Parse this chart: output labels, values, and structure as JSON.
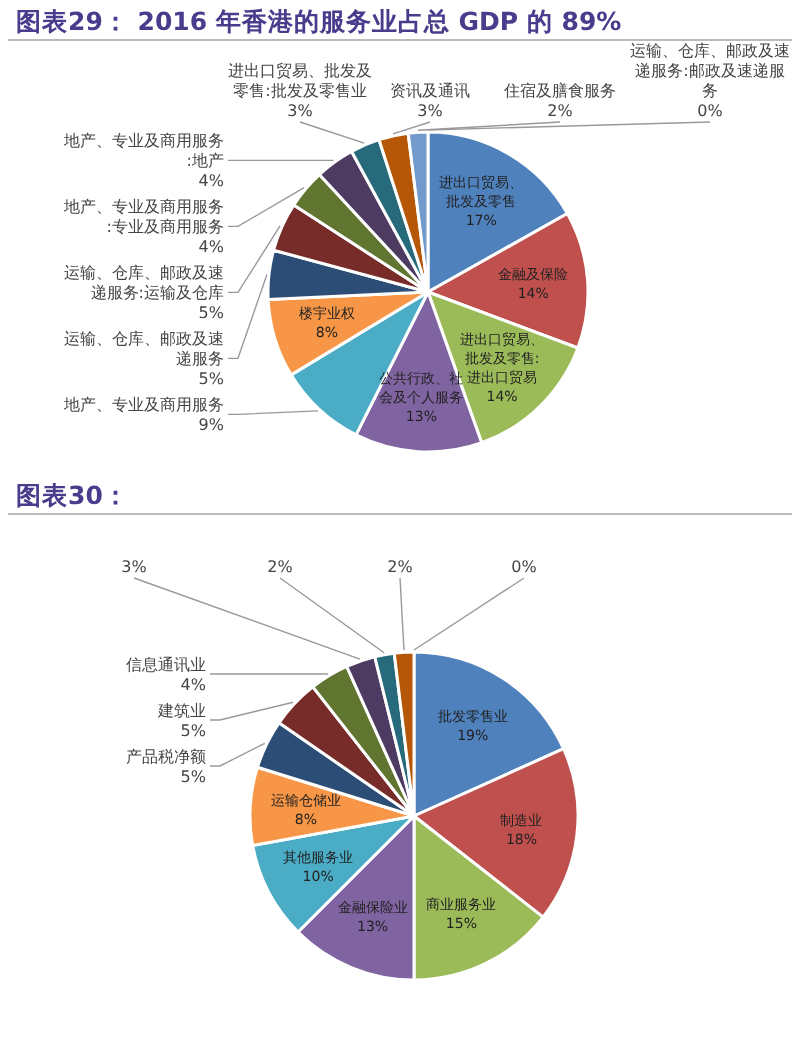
{
  "chart_data": [
    {
      "type": "pie",
      "title": "图表29： 2016 年香港的服务业占总 GDP 的 89%",
      "categories": [
        "进出口贸易、批发及零售",
        "金融及保险",
        "进出口贸易、批发及零售:进出口贸易",
        "公共行政、社会及个人服务",
        "地产、专业及商用服务",
        "楼宇业权",
        "运输、仓库、邮政及速递服务",
        "运输、仓库、邮政及速递服务:运输及仓库",
        "地产、专业及商用服务:专业及商用服务",
        "地产、专业及商用服务:地产",
        "进出口贸易、批发及零售:批发及零售业",
        "资讯及通讯",
        "住宿及膳食服务",
        "运输、仓库、邮政及速递服务:邮政及速递服务"
      ],
      "values": [
        17,
        14,
        14,
        13,
        9,
        8,
        5,
        5,
        4,
        4,
        3,
        3,
        2,
        0
      ],
      "value_labels": [
        "17%",
        "14%",
        "14%",
        "13%",
        "9%",
        "8%",
        "5%",
        "5%",
        "4%",
        "4%",
        "3%",
        "3%",
        "2%",
        "0%"
      ],
      "colors": [
        "#4f81bd",
        "#c0504d",
        "#9bbb59",
        "#8064a2",
        "#4bacc6",
        "#f79646",
        "#2c4d75",
        "#772c2a",
        "#5f7530",
        "#4d3b62",
        "#276a7c",
        "#b65708",
        "#729aca",
        "#d99694"
      ]
    },
    {
      "type": "pie",
      "title": "图表30：",
      "categories": [
        "批发零售业",
        "制造业",
        "商业服务业",
        "金融保险业",
        "其他服务业",
        "运输仓储业",
        "产品税净额",
        "建筑业",
        "信息通讯业",
        null,
        null,
        null,
        null
      ],
      "values": [
        19,
        18,
        15,
        13,
        10,
        8,
        5,
        5,
        4,
        3,
        2,
        2,
        0
      ],
      "value_labels": [
        "19%",
        "18%",
        "15%",
        "13%",
        "10%",
        "8%",
        "5%",
        "5%",
        "4%",
        "3%",
        "2%",
        "2%",
        "0%"
      ],
      "colors": [
        "#4f81bd",
        "#c0504d",
        "#9bbb59",
        "#8064a2",
        "#4bacc6",
        "#f79646",
        "#2c4d75",
        "#772c2a",
        "#5f7530",
        "#4d3b62",
        "#276a7c",
        "#b65708",
        "#729aca"
      ]
    }
  ]
}
